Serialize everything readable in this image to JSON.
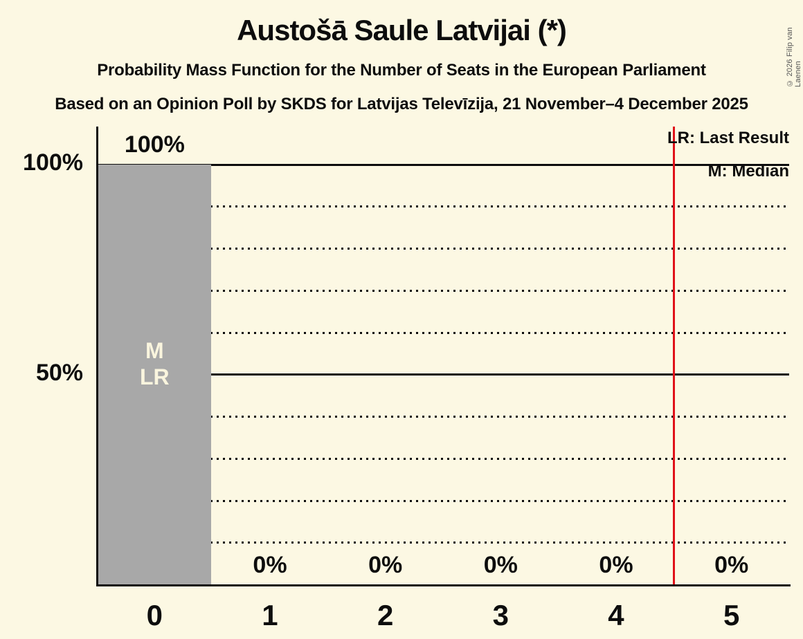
{
  "title": "Austošā Saule Latvijai (*)",
  "subtitles": [
    "Probability Mass Function for the Number of Seats in the European Parliament",
    "Based on an Opinion Poll by SKDS for Latvijas Televīzija, 21 November–4 December 2025"
  ],
  "copyright": "© 2026 Filip van Laenen",
  "legend": {
    "lr": "LR: Last Result",
    "m": "M: Median"
  },
  "chart_data": {
    "type": "bar",
    "title": "Austošā Saule Latvijai (*)",
    "categories": [
      "0",
      "1",
      "2",
      "3",
      "4",
      "5"
    ],
    "values": [
      100,
      0,
      0,
      0,
      0,
      0
    ],
    "value_labels": [
      "100%",
      "0%",
      "0%",
      "0%",
      "0%",
      "0%"
    ],
    "y_ticks": [
      {
        "value": 100,
        "label": "100%"
      },
      {
        "value": 50,
        "label": "50%"
      }
    ],
    "ylim": [
      0,
      100
    ],
    "grid": {
      "solid_percents": [
        100,
        50
      ],
      "dotted_percents": [
        90,
        80,
        70,
        60,
        40,
        30,
        20,
        10
      ]
    },
    "annotated_bar": {
      "category": "0",
      "lines": [
        "M",
        "LR"
      ]
    },
    "median_seats": 0,
    "last_result_seats": 0,
    "vertical_line_x": 4.5,
    "legend_position": "top-right",
    "colors": {
      "background": "#fcf8e3",
      "bar": "#a8a8a8",
      "bar_label": "#faf5de",
      "axis": "#0d0d0d",
      "vertical_line": "#e01119",
      "text": "#0d0d0d"
    }
  }
}
